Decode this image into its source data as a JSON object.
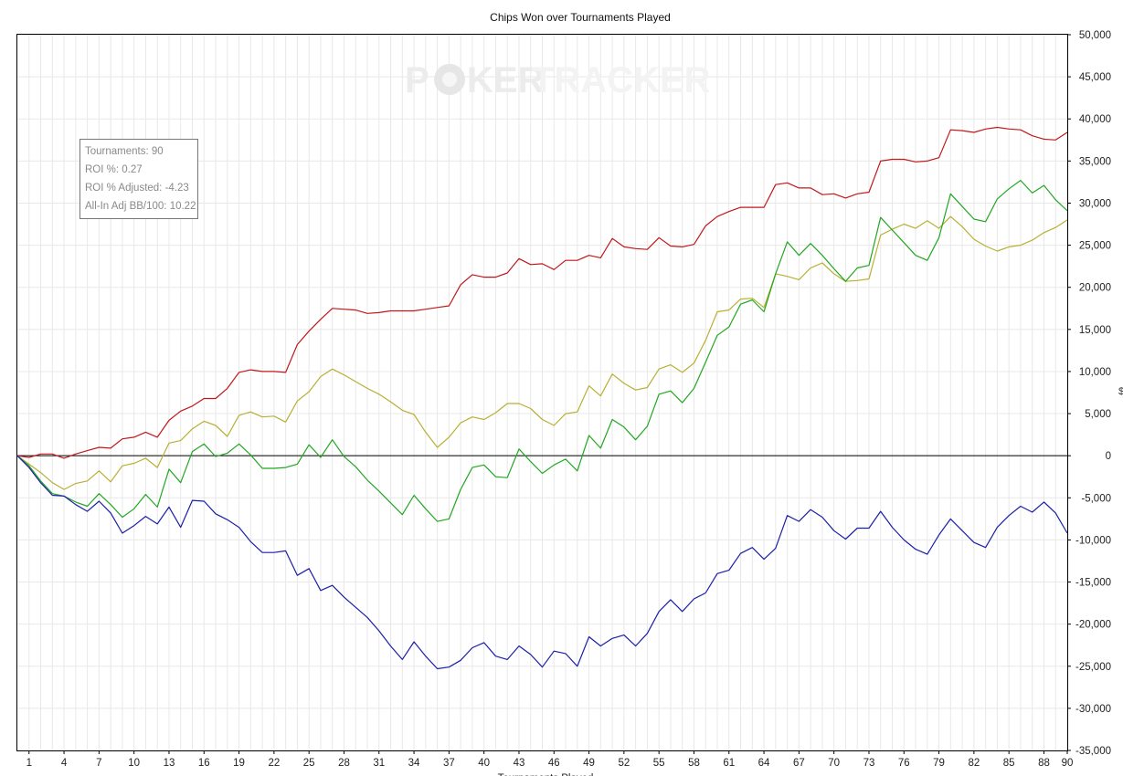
{
  "title": "Chips Won over Tournaments Played",
  "watermark": {
    "brand_left": "P",
    "brand_mid": "KER",
    "brand_right": "TRACKER"
  },
  "stats": {
    "tournaments": "Tournaments: 90",
    "roi": "ROI %: 0.27",
    "roi_adjusted": "ROI % Adjusted: -4.23",
    "allin_bb": "All-In Adj BB/100: 10.22"
  },
  "colors": {
    "red": "#c0181b",
    "green": "#22a722",
    "olive": "#b8b033",
    "blue": "#1c1fa8",
    "grid": "#e8e8e8",
    "zero_line": "#000000"
  },
  "chart_data": {
    "type": "line",
    "title": "Chips Won over Tournaments Played",
    "xlabel": "Tournaments Played",
    "ylabel": "$",
    "xlim": [
      0,
      90
    ],
    "ylim": [
      -35000,
      50000
    ],
    "grid": true,
    "x_ticks": [
      1,
      4,
      7,
      10,
      13,
      16,
      19,
      22,
      25,
      28,
      31,
      34,
      37,
      40,
      43,
      46,
      49,
      52,
      55,
      58,
      61,
      64,
      67,
      70,
      73,
      76,
      79,
      82,
      85,
      88,
      90
    ],
    "y_ticks": [
      50000,
      45000,
      40000,
      35000,
      30000,
      25000,
      20000,
      15000,
      10000,
      5000,
      0,
      -5000,
      -10000,
      -15000,
      -20000,
      -25000,
      -30000,
      -35000
    ],
    "y_tick_labels": [
      "50,000",
      "45,000",
      "40,000",
      "35,000",
      "30,000",
      "25,000",
      "20,000",
      "15,000",
      "10,000",
      "5,000",
      "0",
      "-5,000",
      "-10,000",
      "-15,000",
      "-20,000",
      "-25,000",
      "-30,000",
      "-35,000"
    ],
    "series": [
      {
        "color": "#c0181b",
        "values": [
          0,
          -200,
          200,
          200,
          -300,
          200,
          600,
          1000,
          900,
          2000,
          2200,
          2800,
          2200,
          4200,
          5300,
          5900,
          6800,
          6800,
          8000,
          9900,
          10200,
          10000,
          10000,
          9900,
          13200,
          14800,
          16200,
          17500,
          17400,
          17300,
          16900,
          17000,
          17200,
          17200,
          17200,
          17400,
          17600,
          17800,
          20300,
          21500,
          21200,
          21200,
          21700,
          23400,
          22700,
          22800,
          22100,
          23200,
          23200,
          23800,
          23500,
          25800,
          24800,
          24600,
          24500,
          25900,
          24900,
          24800,
          25100,
          27300,
          28400,
          29000,
          29500,
          29500,
          29500,
          32200,
          32400,
          31800,
          31800,
          31000,
          31100,
          30600,
          31100,
          31300,
          35000,
          35200,
          35200,
          34900,
          35000,
          35400,
          38700,
          38600,
          38400,
          38800,
          39000,
          38800,
          38700,
          38000,
          37600,
          37500,
          38400
        ]
      },
      {
        "color": "#b8b033",
        "values": [
          0,
          -1000,
          -2000,
          -3200,
          -4000,
          -3300,
          -3000,
          -1800,
          -3100,
          -1200,
          -900,
          -300,
          -1400,
          1500,
          1800,
          3200,
          4100,
          3600,
          2300,
          4800,
          5200,
          4600,
          4700,
          4000,
          6500,
          7600,
          9400,
          10300,
          9600,
          8800,
          8000,
          7300,
          6400,
          5400,
          4900,
          2800,
          1000,
          2200,
          3900,
          4600,
          4300,
          5100,
          6200,
          6200,
          5600,
          4300,
          3600,
          5000,
          5200,
          8300,
          7100,
          9700,
          8600,
          7800,
          8100,
          10300,
          10800,
          9900,
          11000,
          13700,
          17100,
          17300,
          18600,
          18700,
          17600,
          21600,
          21300,
          20900,
          22300,
          22900,
          21600,
          20700,
          20800,
          21000,
          26200,
          26900,
          27500,
          27000,
          27900,
          27000,
          28400,
          27200,
          25700,
          24900,
          24300,
          24800,
          25000,
          25600,
          26500,
          27100,
          28000
        ]
      },
      {
        "color": "#22a722",
        "values": [
          0,
          -1200,
          -3000,
          -4500,
          -4800,
          -5500,
          -6000,
          -4500,
          -5800,
          -7300,
          -6300,
          -4600,
          -6100,
          -1600,
          -3200,
          500,
          1400,
          -100,
          300,
          1400,
          100,
          -1500,
          -1500,
          -1400,
          -1000,
          1300,
          -200,
          1900,
          -100,
          -1300,
          -2900,
          -4200,
          -5600,
          -7000,
          -4700,
          -6300,
          -7800,
          -7500,
          -4000,
          -1400,
          -1100,
          -2500,
          -2600,
          800,
          -700,
          -2100,
          -1100,
          -400,
          -1800,
          2400,
          900,
          4300,
          3400,
          1900,
          3500,
          7300,
          7700,
          6300,
          8000,
          11100,
          14300,
          15300,
          18000,
          18500,
          17100,
          21600,
          25400,
          23800,
          25200,
          23800,
          22200,
          20700,
          22300,
          22600,
          28300,
          26800,
          25300,
          23800,
          23200,
          25900,
          31100,
          29600,
          28100,
          27800,
          30500,
          31700,
          32700,
          31200,
          32100,
          30400,
          29100
        ]
      },
      {
        "color": "#1c1fa8",
        "values": [
          0,
          -1400,
          -3200,
          -4700,
          -4800,
          -5800,
          -6600,
          -5400,
          -6800,
          -9200,
          -8300,
          -7200,
          -8100,
          -6100,
          -8500,
          -5300,
          -5400,
          -6900,
          -7600,
          -8500,
          -10200,
          -11500,
          -11500,
          -11300,
          -14200,
          -13400,
          -16000,
          -15400,
          -16800,
          -18000,
          -19200,
          -20800,
          -22600,
          -24200,
          -22100,
          -23800,
          -25300,
          -25100,
          -24300,
          -22800,
          -22200,
          -23800,
          -24200,
          -22600,
          -23600,
          -25100,
          -23200,
          -23500,
          -25000,
          -21500,
          -22600,
          -21700,
          -21300,
          -22600,
          -21100,
          -18500,
          -17100,
          -18500,
          -17000,
          -16300,
          -14000,
          -13600,
          -11600,
          -10900,
          -12300,
          -11000,
          -7100,
          -7800,
          -6400,
          -7300,
          -8900,
          -9900,
          -8600,
          -8600,
          -6600,
          -8500,
          -10000,
          -11100,
          -11700,
          -9400,
          -7500,
          -8900,
          -10300,
          -10900,
          -8500,
          -7100,
          -6000,
          -6700,
          -5500,
          -6800,
          -9200
        ]
      }
    ]
  }
}
